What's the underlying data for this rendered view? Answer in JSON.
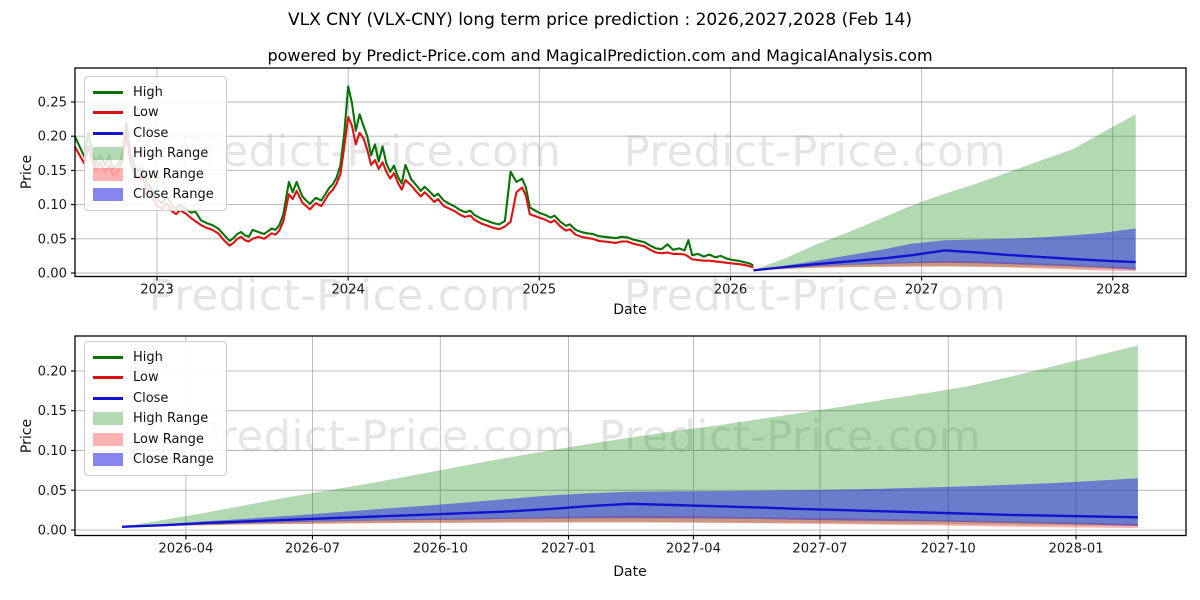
{
  "title": "VLX CNY (VLX-CNY) long term price prediction : 2026,2027,2028 (Feb 14)",
  "subtitle": "powered by Predict-Price.com and MagicalPrediction.com and MagicalAnalysis.com",
  "watermark": {
    "text": "Predict-Price.com"
  },
  "colors": {
    "high": "#077307",
    "low": "#dd1111",
    "close": "#1313cf",
    "high_range": "#008000",
    "low_range": "#ff0000",
    "close_range": "#2222e6",
    "grid": "#b5b5b5",
    "spine": "#000000",
    "tick_text": "#1a1a1a"
  },
  "legend": [
    {
      "label": "High",
      "type": "line",
      "color_key": "high"
    },
    {
      "label": "Low",
      "type": "line",
      "color_key": "low"
    },
    {
      "label": "Close",
      "type": "line",
      "color_key": "close"
    },
    {
      "label": "High Range",
      "type": "patch",
      "color_key": "high_range",
      "opacity": 0.3
    },
    {
      "label": "Low Range",
      "type": "patch",
      "color_key": "low_range",
      "opacity": 0.3
    },
    {
      "label": "Close Range",
      "type": "patch",
      "color_key": "close_range",
      "opacity": 0.55
    }
  ],
  "chart_data": [
    {
      "type": "line",
      "name": "long-term-history-and-prediction",
      "xlabel": "Date",
      "ylabel": "Price",
      "xlim": [
        2022.571,
        2028.383
      ],
      "ylim": [
        -0.0051,
        0.2997
      ],
      "xticks": [
        {
          "label": "2023",
          "x": 2023
        },
        {
          "label": "2024",
          "x": 2024
        },
        {
          "label": "2025",
          "x": 2025
        },
        {
          "label": "2026",
          "x": 2026
        },
        {
          "label": "2027",
          "x": 2027
        },
        {
          "label": "2028",
          "x": 2028
        }
      ],
      "yticks": [
        {
          "label": "0.00",
          "y": 0.0
        },
        {
          "label": "0.05",
          "y": 0.05
        },
        {
          "label": "0.10",
          "y": 0.1
        },
        {
          "label": "0.15",
          "y": 0.15
        },
        {
          "label": "0.20",
          "y": 0.2
        },
        {
          "label": "0.25",
          "y": 0.25
        }
      ],
      "history": {
        "x": [
          2022.57,
          2022.6,
          2022.62,
          2022.64,
          2022.66,
          2022.68,
          2022.7,
          2022.73,
          2022.75,
          2022.77,
          2022.8,
          2022.82,
          2022.84,
          2022.86,
          2022.88,
          2022.9,
          2022.92,
          2022.94,
          2022.96,
          2022.98,
          2023.0,
          2023.03,
          2023.05,
          2023.08,
          2023.1,
          2023.12,
          2023.15,
          2023.18,
          2023.2,
          2023.23,
          2023.26,
          2023.29,
          2023.32,
          2023.35,
          2023.38,
          2023.4,
          2023.42,
          2023.44,
          2023.46,
          2023.48,
          2023.5,
          2023.53,
          2023.56,
          2023.58,
          2023.6,
          2023.62,
          2023.64,
          2023.66,
          2023.69,
          2023.71,
          2023.73,
          2023.76,
          2023.78,
          2023.8,
          2023.83,
          2023.86,
          2023.88,
          2023.9,
          2023.92,
          2023.94,
          2023.96,
          2023.98,
          2024.0,
          2024.02,
          2024.04,
          2024.06,
          2024.08,
          2024.1,
          2024.12,
          2024.14,
          2024.16,
          2024.18,
          2024.2,
          2024.22,
          2024.24,
          2024.26,
          2024.28,
          2024.3,
          2024.33,
          2024.36,
          2024.38,
          2024.4,
          2024.43,
          2024.45,
          2024.47,
          2024.5,
          2024.53,
          2024.56,
          2024.58,
          2024.61,
          2024.64,
          2024.66,
          2024.7,
          2024.73,
          2024.76,
          2024.79,
          2024.82,
          2024.85,
          2024.88,
          2024.91,
          2024.93,
          2024.95,
          2024.98,
          2025.0,
          2025.03,
          2025.06,
          2025.08,
          2025.11,
          2025.14,
          2025.16,
          2025.19,
          2025.22,
          2025.25,
          2025.28,
          2025.31,
          2025.34,
          2025.37,
          2025.4,
          2025.43,
          2025.46,
          2025.49,
          2025.52,
          2025.55,
          2025.58,
          2025.61,
          2025.64,
          2025.67,
          2025.7,
          2025.73,
          2025.76,
          2025.78,
          2025.8,
          2025.83,
          2025.86,
          2025.89,
          2025.92,
          2025.95,
          2025.98,
          2026.01,
          2026.04,
          2026.07,
          2026.1,
          2026.12
        ],
        "low": [
          0.185,
          0.17,
          0.16,
          0.185,
          0.168,
          0.15,
          0.162,
          0.148,
          0.158,
          0.143,
          0.15,
          0.165,
          0.205,
          0.163,
          0.148,
          0.138,
          0.143,
          0.128,
          0.118,
          0.108,
          0.098,
          0.094,
          0.102,
          0.09,
          0.086,
          0.092,
          0.087,
          0.08,
          0.076,
          0.07,
          0.066,
          0.063,
          0.058,
          0.048,
          0.04,
          0.044,
          0.05,
          0.053,
          0.048,
          0.046,
          0.05,
          0.053,
          0.05,
          0.054,
          0.058,
          0.056,
          0.062,
          0.075,
          0.115,
          0.108,
          0.12,
          0.103,
          0.098,
          0.093,
          0.102,
          0.098,
          0.107,
          0.116,
          0.122,
          0.131,
          0.145,
          0.185,
          0.228,
          0.215,
          0.188,
          0.205,
          0.197,
          0.18,
          0.158,
          0.165,
          0.152,
          0.162,
          0.148,
          0.138,
          0.146,
          0.132,
          0.122,
          0.136,
          0.128,
          0.118,
          0.112,
          0.118,
          0.11,
          0.104,
          0.108,
          0.098,
          0.094,
          0.09,
          0.086,
          0.082,
          0.084,
          0.078,
          0.072,
          0.069,
          0.066,
          0.064,
          0.068,
          0.075,
          0.118,
          0.125,
          0.113,
          0.086,
          0.083,
          0.081,
          0.078,
          0.074,
          0.077,
          0.068,
          0.062,
          0.064,
          0.056,
          0.053,
          0.051,
          0.05,
          0.047,
          0.046,
          0.045,
          0.044,
          0.046,
          0.046,
          0.043,
          0.041,
          0.039,
          0.034,
          0.03,
          0.029,
          0.03,
          0.028,
          0.028,
          0.027,
          0.024,
          0.02,
          0.019,
          0.018,
          0.018,
          0.017,
          0.016,
          0.015,
          0.014,
          0.013,
          0.012,
          0.01,
          0.008
        ],
        "high": [
          0.2,
          0.182,
          0.17,
          0.205,
          0.178,
          0.16,
          0.172,
          0.158,
          0.172,
          0.152,
          0.16,
          0.175,
          0.22,
          0.175,
          0.158,
          0.148,
          0.153,
          0.138,
          0.128,
          0.118,
          0.107,
          0.102,
          0.112,
          0.098,
          0.094,
          0.1,
          0.094,
          0.088,
          0.09,
          0.077,
          0.073,
          0.07,
          0.065,
          0.056,
          0.047,
          0.051,
          0.057,
          0.06,
          0.055,
          0.053,
          0.063,
          0.06,
          0.057,
          0.061,
          0.065,
          0.063,
          0.07,
          0.085,
          0.133,
          0.118,
          0.133,
          0.112,
          0.106,
          0.101,
          0.11,
          0.106,
          0.115,
          0.124,
          0.13,
          0.14,
          0.158,
          0.205,
          0.273,
          0.248,
          0.208,
          0.232,
          0.215,
          0.2,
          0.172,
          0.188,
          0.163,
          0.185,
          0.16,
          0.148,
          0.157,
          0.141,
          0.131,
          0.158,
          0.137,
          0.127,
          0.12,
          0.126,
          0.118,
          0.112,
          0.116,
          0.106,
          0.101,
          0.097,
          0.093,
          0.089,
          0.091,
          0.085,
          0.079,
          0.076,
          0.073,
          0.071,
          0.076,
          0.148,
          0.133,
          0.138,
          0.125,
          0.096,
          0.091,
          0.088,
          0.085,
          0.081,
          0.084,
          0.075,
          0.069,
          0.071,
          0.063,
          0.06,
          0.058,
          0.057,
          0.054,
          0.053,
          0.052,
          0.051,
          0.053,
          0.052,
          0.049,
          0.047,
          0.045,
          0.04,
          0.036,
          0.035,
          0.042,
          0.034,
          0.036,
          0.033,
          0.048,
          0.026,
          0.028,
          0.024,
          0.027,
          0.023,
          0.025,
          0.021,
          0.019,
          0.018,
          0.016,
          0.014,
          0.011
        ]
      },
      "prediction": {
        "x": [
          2026.12,
          2026.29,
          2026.45,
          2026.62,
          2026.79,
          2026.95,
          2027.12,
          2027.29,
          2027.45,
          2027.62,
          2027.79,
          2027.95,
          2028.12
        ],
        "close": [
          0.004,
          0.009,
          0.013,
          0.017,
          0.021,
          0.026,
          0.033,
          0.03,
          0.0265,
          0.0235,
          0.0205,
          0.018,
          0.016
        ],
        "close_upper": [
          0.004,
          0.011,
          0.018,
          0.026,
          0.034,
          0.043,
          0.048,
          0.049,
          0.05,
          0.052,
          0.055,
          0.059,
          0.065
        ],
        "close_lower": [
          0.004,
          0.007,
          0.01,
          0.012,
          0.013,
          0.0145,
          0.015,
          0.0145,
          0.013,
          0.0115,
          0.01,
          0.008,
          0.005
        ],
        "low_upper": [
          0.004,
          0.008,
          0.011,
          0.013,
          0.015,
          0.016,
          0.018,
          0.017,
          0.0155,
          0.014,
          0.012,
          0.01,
          0.008
        ],
        "low_lower": [
          0.004,
          0.006,
          0.0075,
          0.0085,
          0.009,
          0.0092,
          0.0095,
          0.009,
          0.008,
          0.0065,
          0.005,
          0.0035,
          0.0025
        ],
        "high_upper": [
          0.004,
          0.022,
          0.042,
          0.06,
          0.08,
          0.099,
          0.116,
          0.131,
          0.147,
          0.164,
          0.181,
          0.206,
          0.232
        ],
        "high_lower": [
          0.004,
          0.006,
          0.008,
          0.009,
          0.0095,
          0.01,
          0.01,
          0.0095,
          0.009,
          0.0085,
          0.007,
          0.006,
          0.005
        ]
      }
    },
    {
      "type": "line",
      "name": "prediction-detail-2026-2028",
      "xlabel": "Date",
      "ylabel": "Price",
      "xlim": [
        -1.11,
        25.137
      ],
      "ylim": [
        -0.0069,
        0.244
      ],
      "xticks": [
        {
          "label": "2026-04",
          "x": 1.51
        },
        {
          "label": "2026-07",
          "x": 4.5
        },
        {
          "label": "2026-10",
          "x": 7.52
        },
        {
          "label": "2027-01",
          "x": 10.55
        },
        {
          "label": "2027-04",
          "x": 13.5
        },
        {
          "label": "2027-07",
          "x": 16.49
        },
        {
          "label": "2027-10",
          "x": 19.52
        },
        {
          "label": "2028-01",
          "x": 22.54
        }
      ],
      "yticks": [
        {
          "label": "0.00",
          "y": 0.0
        },
        {
          "label": "0.05",
          "y": 0.05
        },
        {
          "label": "0.10",
          "y": 0.1
        },
        {
          "label": "0.15",
          "y": 0.15
        },
        {
          "label": "0.20",
          "y": 0.2
        }
      ],
      "prediction": {
        "x": [
          0,
          1,
          2,
          3,
          4,
          5,
          6,
          7,
          8,
          9,
          10,
          11,
          12,
          13,
          14,
          15,
          16,
          17,
          18,
          19,
          20,
          21,
          22,
          23,
          24
        ],
        "close": [
          0.004,
          0.006,
          0.009,
          0.011,
          0.013,
          0.015,
          0.017,
          0.019,
          0.021,
          0.023,
          0.026,
          0.03,
          0.033,
          0.0315,
          0.03,
          0.0285,
          0.0265,
          0.025,
          0.0235,
          0.022,
          0.0205,
          0.019,
          0.018,
          0.017,
          0.016
        ],
        "close_upper": [
          0.004,
          0.0075,
          0.011,
          0.0145,
          0.018,
          0.022,
          0.026,
          0.03,
          0.034,
          0.0385,
          0.043,
          0.046,
          0.048,
          0.0485,
          0.049,
          0.0495,
          0.05,
          0.051,
          0.052,
          0.0535,
          0.055,
          0.057,
          0.059,
          0.062,
          0.065
        ],
        "close_lower": [
          0.004,
          0.0055,
          0.007,
          0.0085,
          0.01,
          0.011,
          0.012,
          0.0125,
          0.013,
          0.014,
          0.0145,
          0.0148,
          0.015,
          0.0148,
          0.0145,
          0.014,
          0.013,
          0.012,
          0.0115,
          0.011,
          0.01,
          0.009,
          0.008,
          0.0065,
          0.005
        ],
        "low_upper": [
          0.004,
          0.006,
          0.008,
          0.0095,
          0.011,
          0.012,
          0.013,
          0.014,
          0.015,
          0.0155,
          0.016,
          0.017,
          0.018,
          0.0175,
          0.017,
          0.016,
          0.0155,
          0.0148,
          0.014,
          0.013,
          0.012,
          0.011,
          0.01,
          0.009,
          0.008
        ],
        "low_lower": [
          0.004,
          0.005,
          0.006,
          0.007,
          0.0075,
          0.008,
          0.0085,
          0.0088,
          0.009,
          0.0091,
          0.0092,
          0.0094,
          0.0095,
          0.0093,
          0.009,
          0.0085,
          0.008,
          0.0073,
          0.0065,
          0.006,
          0.005,
          0.004,
          0.0035,
          0.003,
          0.0025
        ],
        "high_upper": [
          0.004,
          0.013,
          0.022,
          0.032,
          0.042,
          0.051,
          0.06,
          0.07,
          0.08,
          0.09,
          0.099,
          0.108,
          0.116,
          0.124,
          0.131,
          0.139,
          0.147,
          0.155,
          0.164,
          0.172,
          0.181,
          0.193,
          0.206,
          0.219,
          0.232
        ],
        "high_lower": [
          0.004,
          0.005,
          0.006,
          0.007,
          0.008,
          0.0085,
          0.009,
          0.0093,
          0.0095,
          0.0098,
          0.01,
          0.01,
          0.01,
          0.0098,
          0.0095,
          0.009,
          0.009,
          0.0085,
          0.008,
          0.0075,
          0.007,
          0.0065,
          0.006,
          0.0055,
          0.005
        ]
      }
    }
  ]
}
